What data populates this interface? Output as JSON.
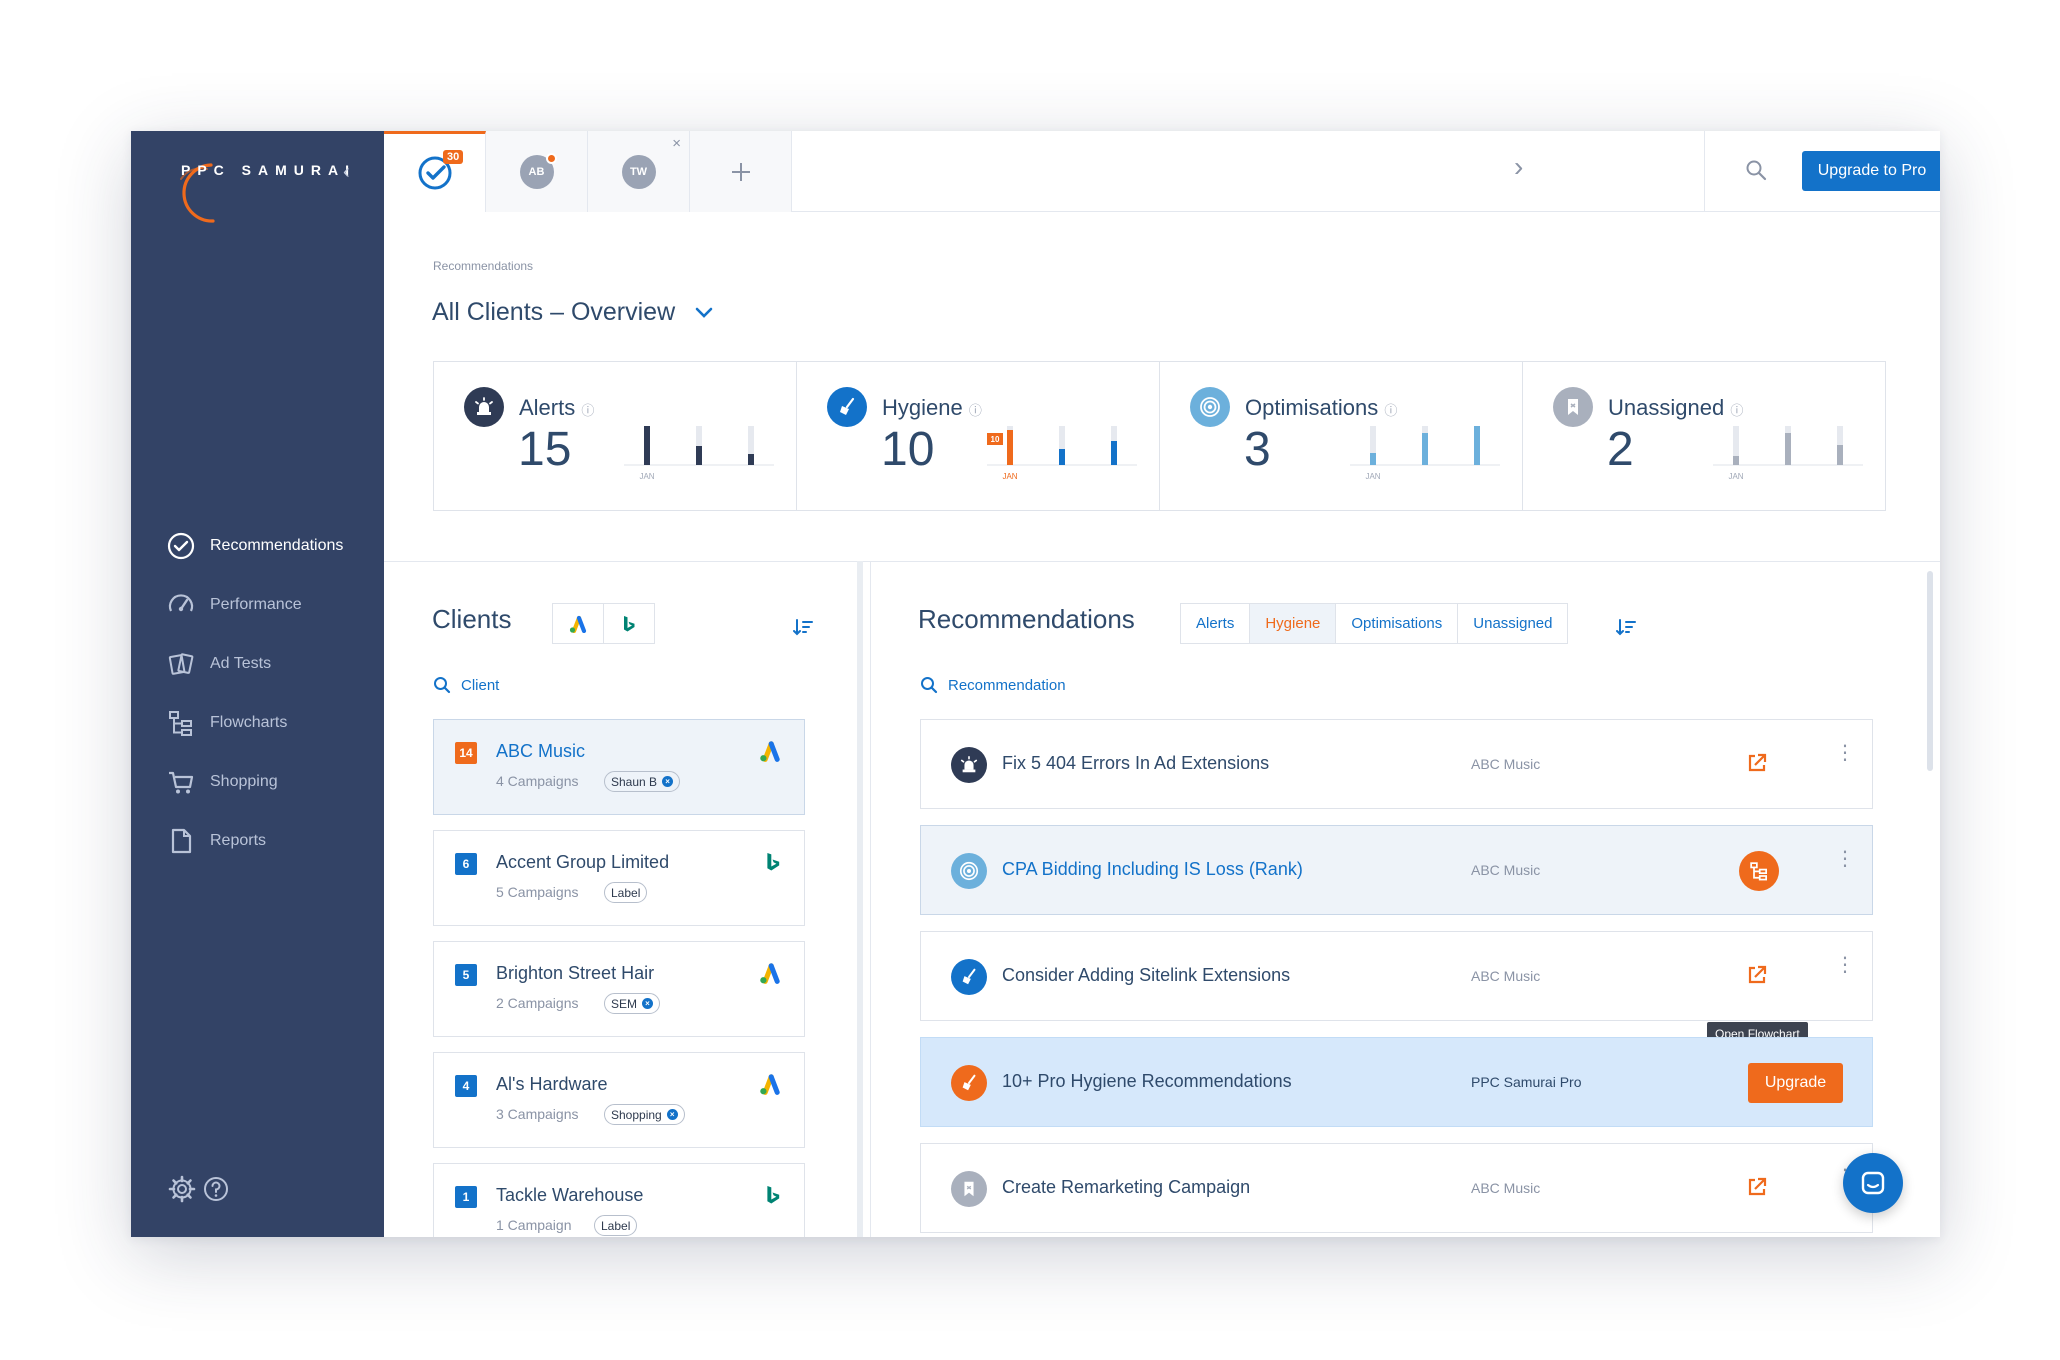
{
  "brand": {
    "name": "PPC SAMURAI",
    "accent": "#ef6a1c",
    "sidebar_bg": "#334366",
    "primary": "#1372c9"
  },
  "sidebar": {
    "items": [
      {
        "label": "Recommendations",
        "icon": "check-circle-icon",
        "active": true
      },
      {
        "label": "Performance",
        "icon": "gauge-icon"
      },
      {
        "label": "Ad Tests",
        "icon": "cards-icon"
      },
      {
        "label": "Flowcharts",
        "icon": "flowchart-icon"
      },
      {
        "label": "Shopping",
        "icon": "cart-icon"
      },
      {
        "label": "Reports",
        "icon": "document-icon"
      }
    ],
    "bottom": [
      "settings-icon",
      "help-icon"
    ]
  },
  "topbar": {
    "tabs": [
      {
        "icon": "check-circle-icon",
        "badge": "30",
        "active": true
      },
      {
        "initials": "AB",
        "notification": true
      },
      {
        "initials": "TW",
        "closable": true
      },
      {
        "icon": "plus-icon"
      }
    ],
    "upgrade_label": "Upgrade to Pro"
  },
  "page": {
    "breadcrumb": "Recommendations",
    "title": "All Clients – Overview"
  },
  "overview": [
    {
      "label": "Alerts",
      "value": "15",
      "month": "JAN",
      "icon": "alarm-icon",
      "color": "#2f3b55",
      "bars": [
        28,
        16,
        8
      ]
    },
    {
      "label": "Hygiene",
      "value": "10",
      "month": "JAN",
      "badge": "10",
      "icon": "broom-icon",
      "color": "#1372c9",
      "bars": [
        26,
        12,
        18
      ]
    },
    {
      "label": "Optimisations",
      "value": "3",
      "month": "JAN",
      "icon": "target-icon",
      "color": "#6cb0dc",
      "bars": [
        8,
        24,
        28
      ]
    },
    {
      "label": "Unassigned",
      "value": "2",
      "month": "JAN",
      "icon": "bookmark-icon",
      "color": "#a9b0bd",
      "bars": [
        6,
        24,
        14
      ]
    }
  ],
  "clients": {
    "title": "Clients",
    "search_placeholder": "Client",
    "items": [
      {
        "count": "14",
        "count_color": "#ef6a1c",
        "name": "ABC Music",
        "campaigns": "4 Campaigns",
        "tag": "Shaun B",
        "tag_removable": true,
        "platform": "google-ads-icon",
        "selected": true
      },
      {
        "count": "6",
        "count_color": "#1372c9",
        "name": "Accent Group Limited",
        "campaigns": "5 Campaigns",
        "tag": "Label",
        "tag_removable": false,
        "platform": "bing-icon"
      },
      {
        "count": "5",
        "count_color": "#1372c9",
        "name": "Brighton Street Hair",
        "campaigns": "2 Campaigns",
        "tag": "SEM",
        "tag_removable": true,
        "platform": "google-ads-icon"
      },
      {
        "count": "4",
        "count_color": "#1372c9",
        "name": "Al's Hardware",
        "campaigns": "3 Campaigns",
        "tag": "Shopping",
        "tag_removable": true,
        "platform": "google-ads-icon"
      },
      {
        "count": "1",
        "count_color": "#1372c9",
        "name": "Tackle Warehouse",
        "campaigns": "1 Campaign",
        "tag": "Label",
        "tag_removable": false,
        "platform": "bing-icon"
      }
    ]
  },
  "recommendations": {
    "title": "Recommendations",
    "tabs": [
      "Alerts",
      "Hygiene",
      "Optimisations",
      "Unassigned"
    ],
    "active_tab": "Hygiene",
    "search_placeholder": "Recommendation",
    "tooltip": "Open Flowchart",
    "upgrade_label": "Upgrade",
    "items": [
      {
        "text": "Fix 5 404 Errors In Ad Extensions",
        "client": "ABC Music",
        "icon": "alarm-icon",
        "icon_color": "#2f3b55",
        "action": "open-external-icon"
      },
      {
        "text": "CPA Bidding Including IS Loss (Rank)",
        "client": "ABC Music",
        "icon": "target-icon",
        "icon_color": "#6cb0dc",
        "action": "flowchart-icon",
        "highlighted": true
      },
      {
        "text": "Consider Adding Sitelink Extensions",
        "client": "ABC Music",
        "icon": "broom-icon",
        "icon_color": "#1372c9",
        "action": "open-external-icon"
      },
      {
        "text": "10+ Pro Hygiene Recommendations",
        "client": "PPC Samurai Pro",
        "icon": "broom-icon",
        "icon_color": "#ef6a1c",
        "action": "upgrade",
        "pro": true
      },
      {
        "text": "Create Remarketing Campaign",
        "client": "ABC Music",
        "icon": "bookmark-icon",
        "icon_color": "#a9b0bd",
        "action": "open-external-icon"
      }
    ]
  }
}
